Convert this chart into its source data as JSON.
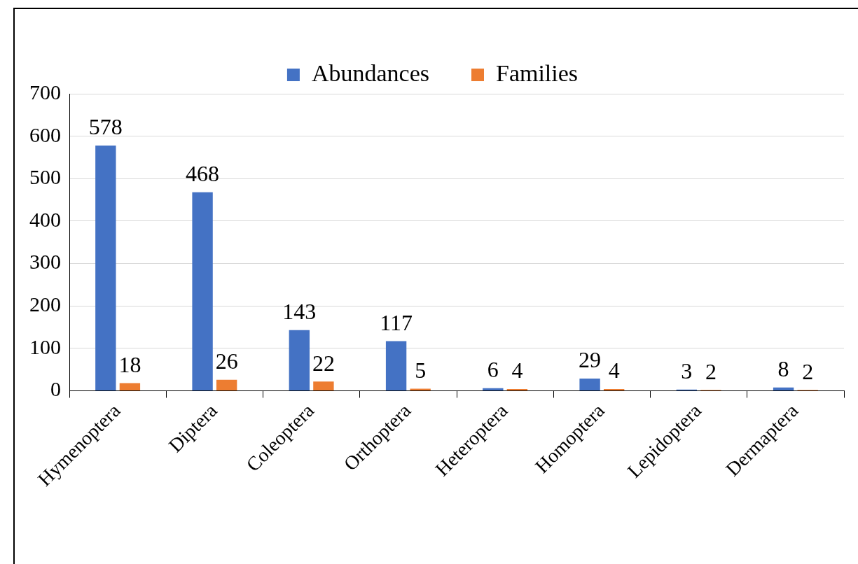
{
  "chart_data": {
    "type": "bar",
    "categories": [
      "Hymenoptera",
      "Diptera",
      "Coleoptera",
      "Orthoptera",
      "Heteroptera",
      "Homoptera",
      "Lepidoptera",
      "Dermaptera"
    ],
    "series": [
      {
        "name": "Abundances",
        "color": "#4472c4",
        "values": [
          578,
          468,
          143,
          117,
          6,
          29,
          3,
          8
        ]
      },
      {
        "name": "Families",
        "color": "#ed7d31",
        "values": [
          18,
          26,
          22,
          5,
          4,
          4,
          2,
          2
        ]
      }
    ],
    "ylim": [
      0,
      700
    ],
    "yticks": [
      0,
      100,
      200,
      300,
      400,
      500,
      600,
      700
    ],
    "grid": "y",
    "legend": "top",
    "data_labels": true
  }
}
